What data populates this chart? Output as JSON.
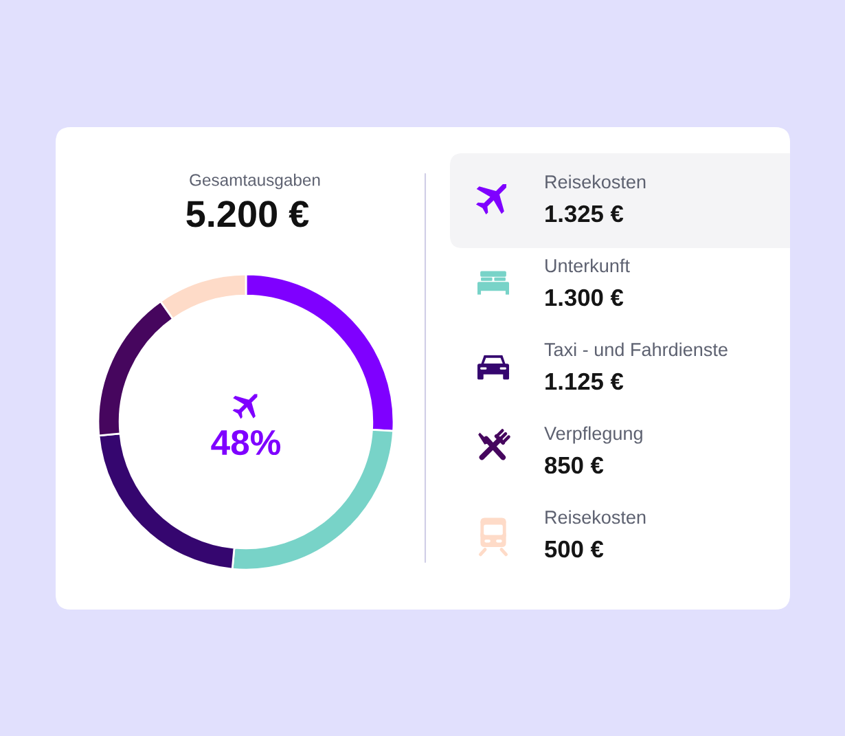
{
  "chart_data": {
    "type": "donut",
    "title": "Gesamtausgaben",
    "subtitle": "5.200 €",
    "categories": [
      "Reisekosten",
      "Unterkunft",
      "Taxi - und Fahrdienste",
      "Verpflegung",
      "Reisekosten"
    ],
    "values": [
      1325,
      1300,
      1125,
      850,
      500
    ],
    "colors": [
      "#7f00ff",
      "#78d3c8",
      "#35066f",
      "#46065e",
      "#fedbc8"
    ],
    "value_labels": [
      "1.325 €",
      "1.300 €",
      "1.125 €",
      "850 €",
      "500 €"
    ],
    "annotations": [
      "48%"
    ],
    "legend": "right"
  }
}
